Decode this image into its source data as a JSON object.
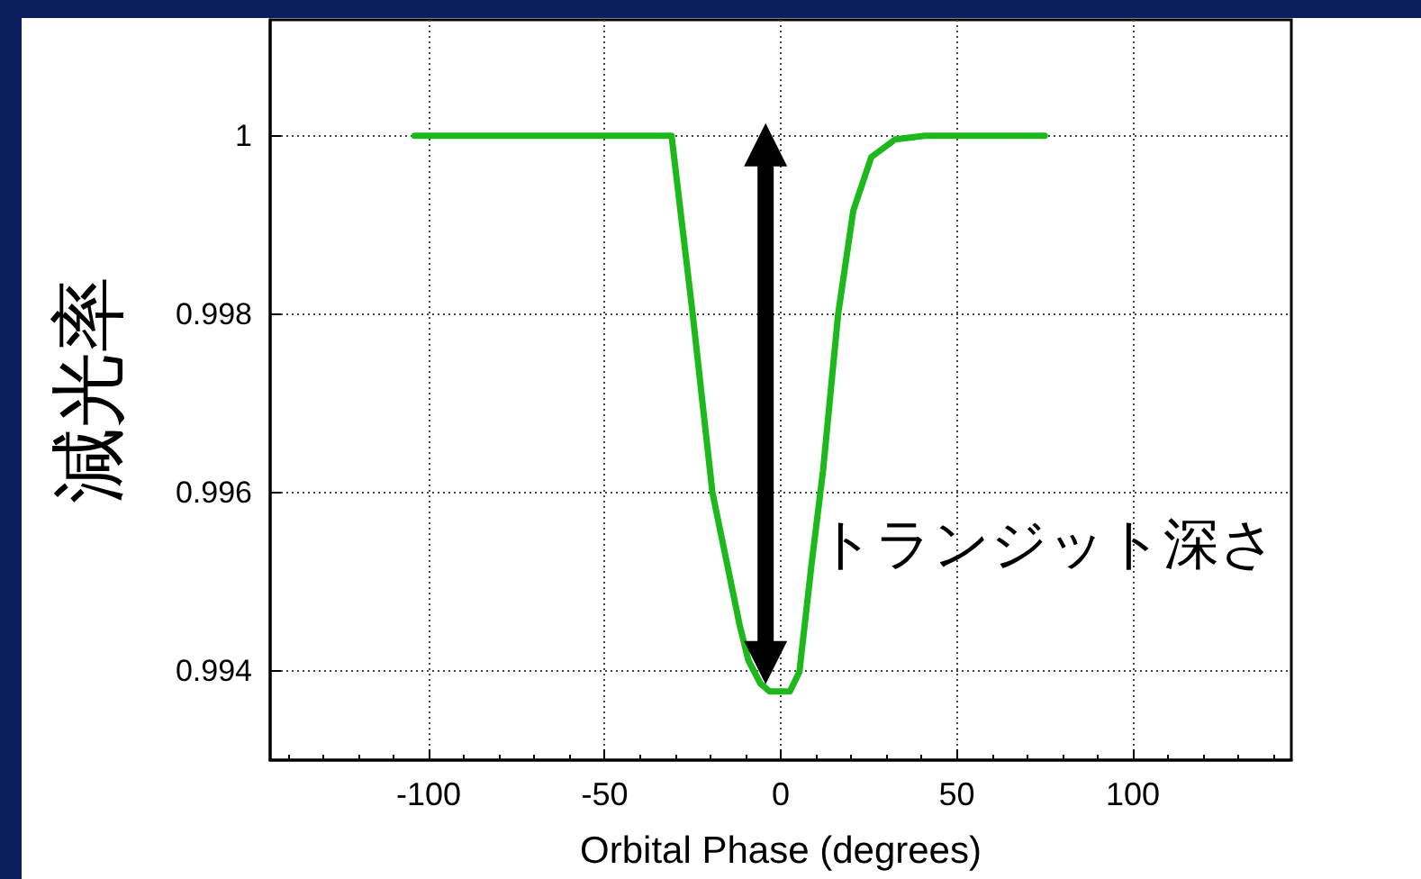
{
  "chart_data": {
    "type": "line",
    "xlabel": "Orbital Phase (degrees)",
    "ylabel": "減光率",
    "x": [
      -104,
      -31,
      -25,
      -19.4,
      -11.7,
      -9.2,
      -5.8,
      -3.2,
      2.6,
      5.3,
      8.7,
      12,
      16.3,
      20.6,
      25.7,
      32.5,
      41,
      75
    ],
    "series": [
      {
        "color": "#1cb81c",
        "values": [
          1,
          1,
          0.998,
          0.996,
          0.99452,
          0.99412,
          0.99386,
          0.99377,
          0.99377,
          0.99399,
          0.99518,
          0.99624,
          0.998,
          0.99916,
          0.99976,
          0.99996,
          1,
          1
        ]
      }
    ],
    "xlim": [
      -145,
      145
    ],
    "xticks": [
      -100,
      -50,
      0,
      50,
      100
    ],
    "ylim": [
      0.993,
      1.0013
    ],
    "yticks": [
      0.994,
      0.996,
      0.998,
      1
    ],
    "grid": true,
    "annotations": [
      "トランジット深さ"
    ]
  }
}
